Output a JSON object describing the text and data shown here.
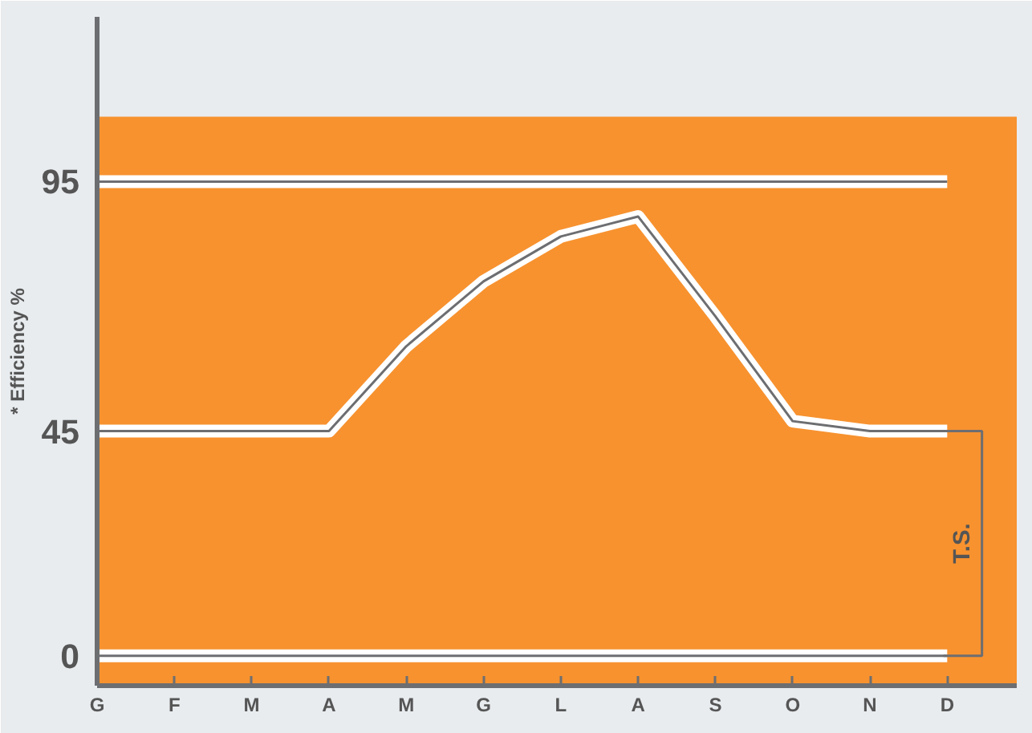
{
  "chart_data": {
    "type": "line",
    "ylabel": "* Efficiency %",
    "categories": [
      "G",
      "F",
      "M",
      "A",
      "M",
      "G",
      "L",
      "A",
      "S",
      "O",
      "N",
      "D"
    ],
    "ylim": [
      -6,
      128
    ],
    "yticks": [
      0,
      45,
      95
    ],
    "series": [
      {
        "color": "#ffffff",
        "values": [
          0,
          0,
          0,
          0,
          0,
          0,
          0,
          0,
          0,
          0,
          0,
          0
        ]
      },
      {
        "color": "#ffffff",
        "values": [
          95,
          95,
          95,
          95,
          95,
          95,
          95,
          95,
          95,
          95,
          95,
          95
        ]
      },
      {
        "color": "#ffffff",
        "values": [
          45,
          45,
          45,
          45,
          62,
          75,
          84,
          88,
          68,
          47,
          45,
          45
        ]
      }
    ],
    "bands": [
      {
        "axis": "y",
        "from": -6,
        "to": 108,
        "color": "#f7922f"
      }
    ],
    "annotations": [
      "T.S."
    ],
    "grid": false,
    "marker": "none",
    "line_style": "solid"
  }
}
